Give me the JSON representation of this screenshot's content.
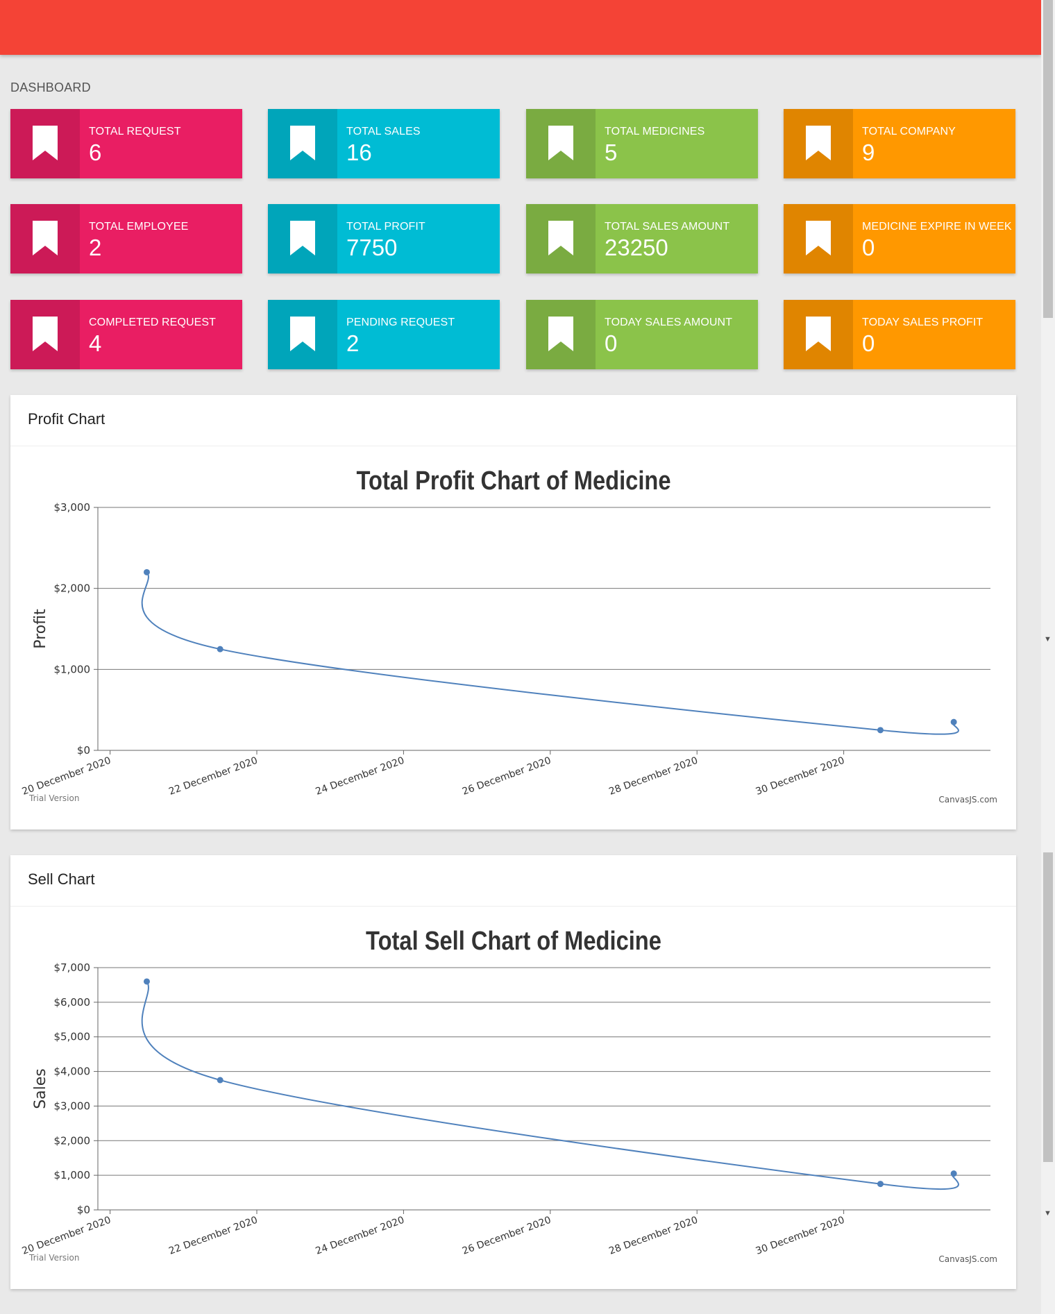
{
  "page_title": "DASHBOARD",
  "cards": [
    {
      "label": "TOTAL REQUEST",
      "value": "6",
      "color": "#e91e63"
    },
    {
      "label": "TOTAL SALES",
      "value": "16",
      "color": "#00bcd4"
    },
    {
      "label": "TOTAL MEDICINES",
      "value": "5",
      "color": "#8bc34a"
    },
    {
      "label": "TOTAL COMPANY",
      "value": "9",
      "color": "#ff9800"
    },
    {
      "label": "TOTAL EMPLOYEE",
      "value": "2",
      "color": "#e91e63"
    },
    {
      "label": "TOTAL PROFIT",
      "value": "7750",
      "color": "#00bcd4"
    },
    {
      "label": "TOTAL SALES AMOUNT",
      "value": "23250",
      "color": "#8bc34a"
    },
    {
      "label": "MEDICINE EXPIRE IN WEEK",
      "value": "0",
      "color": "#ff9800"
    },
    {
      "label": "COMPLETED REQUEST",
      "value": "4",
      "color": "#e91e63"
    },
    {
      "label": "PENDING REQUEST",
      "value": "2",
      "color": "#00bcd4"
    },
    {
      "label": "TODAY SALES AMOUNT",
      "value": "0",
      "color": "#8bc34a"
    },
    {
      "label": "TODAY SALES PROFIT",
      "value": "0",
      "color": "#ff9800"
    }
  ],
  "card_icon": "bookmark-icon",
  "profit_panel": {
    "header": "Profit Chart",
    "watermark_left": "Trial Version",
    "watermark_right": "CanvasJS.com"
  },
  "sell_panel": {
    "header": "Sell Chart",
    "watermark_left": "Trial Version",
    "watermark_right": "CanvasJS.com"
  },
  "chart_data": [
    {
      "type": "line",
      "title": "Total Profit Chart of Medicine",
      "ylabel": "Profit",
      "xlabel": "",
      "ylim": [
        0,
        3000
      ],
      "yticks": [
        "$0",
        "$1,000",
        "$2,000",
        "$3,000"
      ],
      "xticks": [
        "20 December 2020",
        "22 December 2020",
        "24 December 2020",
        "26 December 2020",
        "28 December 2020",
        "30 December 2020"
      ],
      "xlim": [
        "2020-12-19T20:00",
        "2021-01-01T00:00"
      ],
      "x": [
        "2020-12-20T12:00",
        "2020-12-21T12:00",
        "2020-12-30T12:00",
        "2020-12-31T12:00"
      ],
      "values": [
        2200,
        1250,
        250,
        350
      ],
      "line_color": "#4f81bc",
      "grid": true
    },
    {
      "type": "line",
      "title": "Total Sell Chart of Medicine",
      "ylabel": "Sales",
      "xlabel": "",
      "ylim": [
        0,
        7000
      ],
      "yticks": [
        "$0",
        "$1,000",
        "$2,000",
        "$3,000",
        "$4,000",
        "$5,000",
        "$6,000",
        "$7,000"
      ],
      "xticks": [
        "20 December 2020",
        "22 December 2020",
        "24 December 2020",
        "26 December 2020",
        "28 December 2020",
        "30 December 2020"
      ],
      "xlim": [
        "2020-12-19T20:00",
        "2021-01-01T00:00"
      ],
      "x": [
        "2020-12-20T12:00",
        "2020-12-21T12:00",
        "2020-12-30T12:00",
        "2020-12-31T12:00"
      ],
      "values": [
        6600,
        3750,
        750,
        1050
      ],
      "line_color": "#4f81bc",
      "grid": true
    }
  ]
}
